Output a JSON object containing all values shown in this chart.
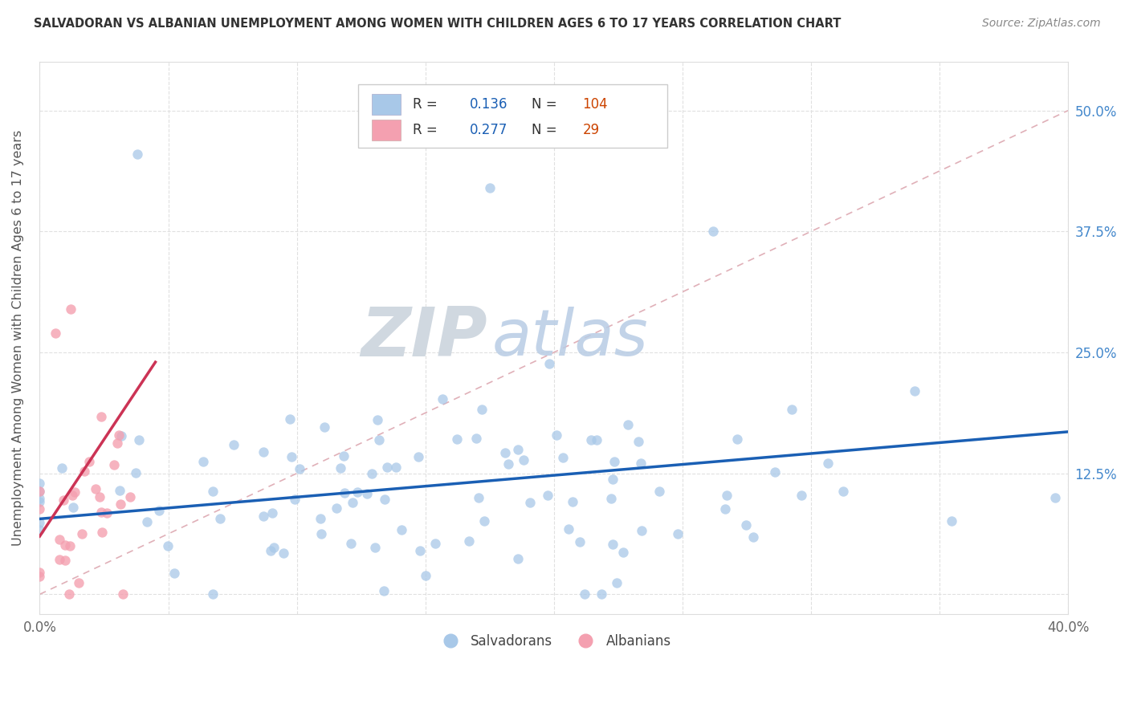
{
  "title": "SALVADORAN VS ALBANIAN UNEMPLOYMENT AMONG WOMEN WITH CHILDREN AGES 6 TO 17 YEARS CORRELATION CHART",
  "source": "Source: ZipAtlas.com",
  "ylabel": "Unemployment Among Women with Children Ages 6 to 17 years",
  "xlim": [
    0.0,
    0.4
  ],
  "ylim": [
    -0.02,
    0.55
  ],
  "xticks": [
    0.0,
    0.05,
    0.1,
    0.15,
    0.2,
    0.25,
    0.3,
    0.35,
    0.4
  ],
  "xticklabels": [
    "0.0%",
    "",
    "",
    "",
    "",
    "",
    "",
    "",
    "40.0%"
  ],
  "ytick_positions": [
    0.0,
    0.125,
    0.25,
    0.375,
    0.5
  ],
  "yticklabels_right": [
    "",
    "12.5%",
    "25.0%",
    "37.5%",
    "50.0%"
  ],
  "salvadoran_color": "#a8c8e8",
  "albanian_color": "#f4a0b0",
  "trendline_salvadoran_color": "#1a5fb4",
  "trendline_albanian_color": "#cc3355",
  "diagonal_color": "#e0b0b8",
  "r_salvadoran": 0.136,
  "n_salvadoran": 104,
  "r_albanian": 0.277,
  "n_albanian": 29,
  "watermark_zip_color": "#d0d8e0",
  "watermark_atlas_color": "#c0d0e8",
  "legend_border_color": "#cccccc",
  "tick_color": "#4488cc",
  "title_color": "#333333",
  "source_color": "#888888",
  "grid_color": "#e0e0e0",
  "spine_color": "#dddddd"
}
